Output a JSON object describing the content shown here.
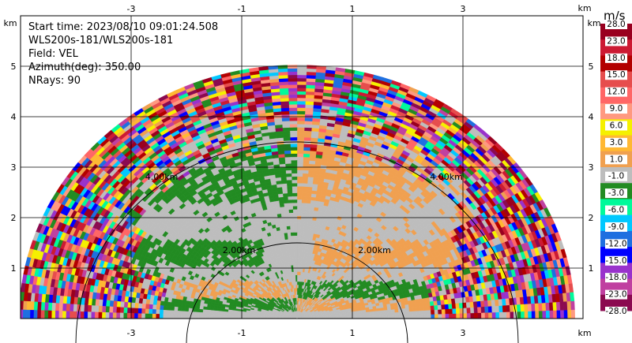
{
  "chart_data": {
    "type": "heatmap",
    "subtype": "radar-ppi-sector",
    "info": {
      "start_time": "Start time: 2023/08/10 09:01:24.508",
      "site": "WLS200s-181/WLS200s-181",
      "field": "Field: VEL",
      "azimuth": "Azimuth(deg): 350.00",
      "nrays": "NRays: 90"
    },
    "axis_unit": "km",
    "x_ticks": [
      "-3",
      "-1",
      "1",
      "3"
    ],
    "x_tick_values": [
      -3,
      -1,
      1,
      3
    ],
    "y_ticks": [
      "1",
      "2",
      "3",
      "4",
      "5"
    ],
    "y_tick_values": [
      1,
      2,
      3,
      4,
      5
    ],
    "xlim": [
      -5.5,
      4.85
    ],
    "ylim": [
      0,
      5.7
    ],
    "grid": true,
    "range_ring_labels": [
      "2.00km",
      "2.00km",
      "4.00km",
      "4.00km"
    ],
    "max_range_km": 5.0,
    "colorbar": {
      "unit": "m/s",
      "placement": "right",
      "labels": [
        "28.0",
        "23.0",
        "18.0",
        "15.0",
        "12.0",
        "9.0",
        "6.0",
        "3.0",
        "1.0",
        "-1.0",
        "-3.0",
        "-6.0",
        "-9.0",
        "-12.0",
        "-15.0",
        "-18.0",
        "-23.0",
        "-28.0"
      ],
      "colors": [
        "#99001f",
        "#cc1a33",
        "#b30000",
        "#e64d4d",
        "#ff6666",
        "#ff9980",
        "#f5f000",
        "#ffb833",
        "#f0a050",
        "#bdbdbd",
        "#228b22",
        "#00fa9a",
        "#00c8ff",
        "#1e6fe0",
        "#0000ff",
        "#9932cc",
        "#c040a0",
        "#8b0a50"
      ]
    },
    "description_bands": [
      {
        "value_class": "-1.0..1.0",
        "color": "#bdbdbd"
      }
    ]
  }
}
